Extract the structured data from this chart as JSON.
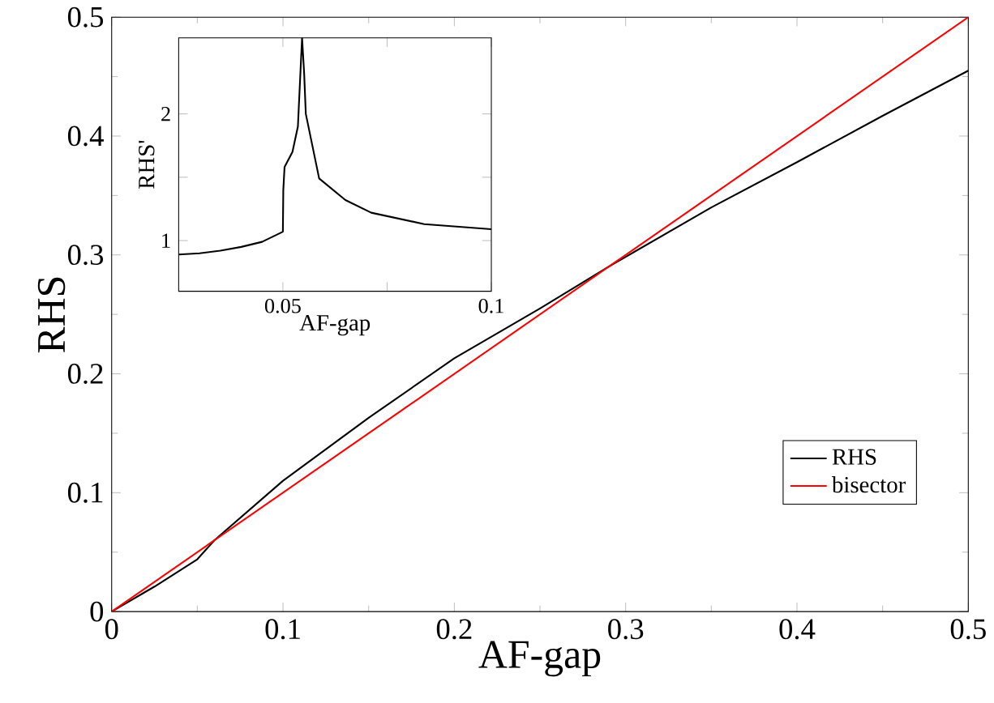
{
  "chart_data": [
    {
      "type": "line",
      "xlabel": "AF-gap",
      "ylabel": "RHS",
      "xlim": [
        0,
        0.5
      ],
      "ylim": [
        0,
        0.5
      ],
      "xticks": [
        0,
        0.1,
        0.2,
        0.3,
        0.4,
        0.5
      ],
      "yticks": [
        0,
        0.1,
        0.2,
        0.3,
        0.4,
        0.5
      ],
      "legend": "bottom right",
      "series": [
        {
          "name": "RHS",
          "color": "#000000",
          "x": [
            0,
            0.025,
            0.05,
            0.055,
            0.06,
            0.1,
            0.15,
            0.2,
            0.25,
            0.29,
            0.35,
            0.4,
            0.45,
            0.5
          ],
          "values": [
            0,
            0.021,
            0.044,
            0.052,
            0.06,
            0.11,
            0.163,
            0.213,
            0.255,
            0.29,
            0.34,
            0.378,
            0.417,
            0.455
          ]
        },
        {
          "name": "bisector",
          "color": "#ff0000",
          "x": [
            0,
            0.5
          ],
          "values": [
            0,
            0.5
          ]
        }
      ]
    },
    {
      "type": "line",
      "xlabel": "AF-gap",
      "ylabel": "RHS'",
      "xlim": [
        0.025,
        0.1
      ],
      "ylim": [
        0.6,
        2.6
      ],
      "xticks": [
        0.05,
        {
          "value": 0.075,
          "label": null
        },
        0.1
      ],
      "yticks": [
        1,
        {
          "value": 1.5,
          "label": null
        },
        2
      ],
      "series": [
        {
          "color": "#000000",
          "x": [
            0.025,
            0.03,
            0.035,
            0.04,
            0.045,
            0.05,
            0.0501,
            0.0504,
            0.0523,
            0.0536,
            0.0542,
            0.0546,
            0.0551,
            0.0555,
            0.0587,
            0.065,
            0.0712,
            0.0839,
            0.1
          ],
          "values": [
            0.89,
            0.9,
            0.92,
            0.95,
            0.99,
            1.07,
            1.4,
            1.58,
            1.7,
            1.9,
            2.32,
            2.6,
            2.32,
            2.0,
            1.49,
            1.32,
            1.22,
            1.13,
            1.09
          ]
        }
      ]
    }
  ]
}
